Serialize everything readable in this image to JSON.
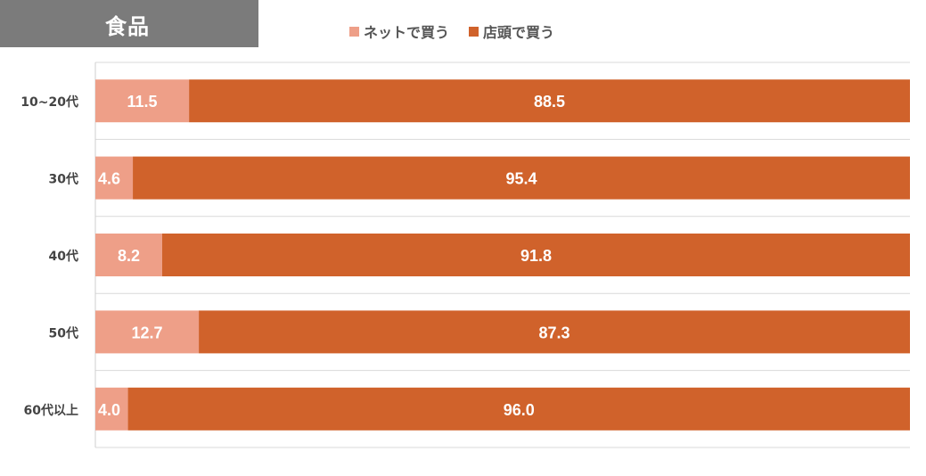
{
  "header": {
    "title": "食品"
  },
  "colors": {
    "online": "#ee9f88",
    "store": "#d0622b",
    "title_bg": "#7b7b7b"
  },
  "legend": [
    {
      "label": "ネットで買う",
      "color": "#ee9f88"
    },
    {
      "label": "店頭で買う",
      "color": "#d0622b"
    }
  ],
  "chart_data": {
    "type": "bar",
    "stacked": true,
    "orientation": "horizontal",
    "categories": [
      "10~20代",
      "30代",
      "40代",
      "50代",
      "60代以上"
    ],
    "series": [
      {
        "name": "ネットで買う",
        "values": [
          11.5,
          4.6,
          8.2,
          12.7,
          4.0
        ]
      },
      {
        "name": "店頭で買う",
        "values": [
          88.5,
          95.4,
          91.8,
          87.3,
          96.0
        ]
      }
    ],
    "xlim": [
      0,
      100
    ],
    "legend_position": "top"
  }
}
